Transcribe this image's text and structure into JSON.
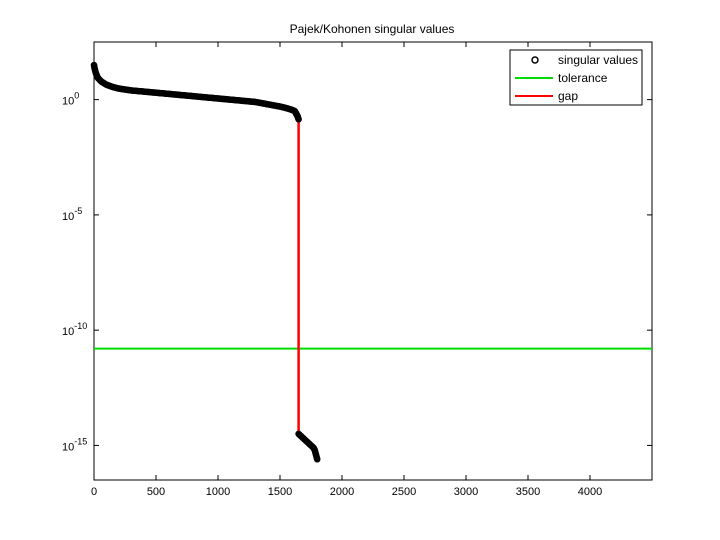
{
  "chart_data": {
    "type": "line",
    "title": "Pajek/Kohonen singular values",
    "xlabel": "",
    "ylabel": "",
    "xlim": [
      0,
      4500
    ],
    "ylim_log10": [
      -16.5,
      2.5
    ],
    "y_scale": "log",
    "x_ticks": [
      0,
      500,
      1000,
      1500,
      2000,
      2500,
      3000,
      3500,
      4000
    ],
    "x_tick_labels": [
      "0",
      "500",
      "1000",
      "1500",
      "2000",
      "2500",
      "3000",
      "3500",
      "4000"
    ],
    "y_ticks": [
      {
        "base": "10",
        "exp": "0"
      },
      {
        "base": "10",
        "exp": "-5"
      },
      {
        "base": "10",
        "exp": "-10"
      },
      {
        "base": "10",
        "exp": "-15"
      }
    ],
    "legend_position": "top-right",
    "series": [
      {
        "name": "singular values",
        "style": "markers",
        "color": "#000000",
        "x_log10y_segments": [
          [
            [
              0,
              1.5
            ],
            [
              5,
              1.35
            ],
            [
              15,
              1.15
            ],
            [
              30,
              0.95
            ],
            [
              60,
              0.78
            ],
            [
              100,
              0.65
            ],
            [
              150,
              0.55
            ],
            [
              200,
              0.48
            ],
            [
              300,
              0.4
            ],
            [
              400,
              0.35
            ],
            [
              500,
              0.3
            ],
            [
              600,
              0.25
            ],
            [
              700,
              0.2
            ],
            [
              800,
              0.15
            ],
            [
              900,
              0.1
            ],
            [
              1000,
              0.05
            ],
            [
              1100,
              0.0
            ],
            [
              1200,
              -0.05
            ],
            [
              1300,
              -0.1
            ],
            [
              1400,
              -0.2
            ],
            [
              1500,
              -0.3
            ],
            [
              1560,
              -0.38
            ],
            [
              1600,
              -0.45
            ],
            [
              1620,
              -0.5
            ],
            [
              1630,
              -0.6
            ],
            [
              1640,
              -0.7
            ],
            [
              1650,
              -0.85
            ]
          ],
          [
            [
              1650,
              -14.5
            ],
            [
              1670,
              -14.6
            ],
            [
              1690,
              -14.7
            ],
            [
              1710,
              -14.8
            ],
            [
              1730,
              -14.9
            ],
            [
              1750,
              -15.0
            ],
            [
              1770,
              -15.1
            ],
            [
              1780,
              -15.2
            ],
            [
              1790,
              -15.4
            ],
            [
              1800,
              -15.6
            ]
          ]
        ]
      },
      {
        "name": "tolerance",
        "style": "line",
        "color": "#00dd00",
        "log10y": -10.8
      },
      {
        "name": "gap",
        "style": "line",
        "color": "#ff0000",
        "x": 1650,
        "log10y_range": [
          -0.85,
          -14.5
        ]
      }
    ]
  }
}
